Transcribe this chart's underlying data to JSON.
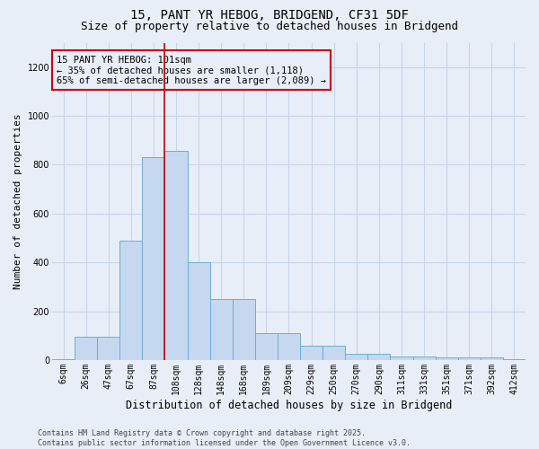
{
  "title_line1": "15, PANT YR HEBOG, BRIDGEND, CF31 5DF",
  "title_line2": "Size of property relative to detached houses in Bridgend",
  "xlabel": "Distribution of detached houses by size in Bridgend",
  "ylabel": "Number of detached properties",
  "bins": [
    "6sqm",
    "26sqm",
    "47sqm",
    "67sqm",
    "87sqm",
    "108sqm",
    "128sqm",
    "148sqm",
    "168sqm",
    "189sqm",
    "209sqm",
    "229sqm",
    "250sqm",
    "270sqm",
    "290sqm",
    "311sqm",
    "331sqm",
    "351sqm",
    "371sqm",
    "392sqm",
    "412sqm"
  ],
  "values": [
    5,
    95,
    95,
    490,
    830,
    855,
    400,
    250,
    250,
    110,
    110,
    60,
    60,
    25,
    25,
    15,
    15,
    10,
    10,
    10,
    5
  ],
  "bar_color": "#c5d8f0",
  "bar_edge_color": "#6baed6",
  "vline_color": "#cc0000",
  "vline_x": 4.5,
  "annotation_text": "15 PANT YR HEBOG: 101sqm\n← 35% of detached houses are smaller (1,118)\n65% of semi-detached houses are larger (2,089) →",
  "annotation_box_edgecolor": "#cc0000",
  "ylim": [
    0,
    1300
  ],
  "yticks": [
    0,
    200,
    400,
    600,
    800,
    1000,
    1200
  ],
  "grid_color": "#c8d4e8",
  "background_color": "#e8eef8",
  "footer_text": "Contains HM Land Registry data © Crown copyright and database right 2025.\nContains public sector information licensed under the Open Government Licence v3.0.",
  "title_fontsize": 10,
  "subtitle_fontsize": 9,
  "xlabel_fontsize": 8.5,
  "ylabel_fontsize": 8,
  "tick_fontsize": 7,
  "annotation_fontsize": 7.5,
  "footer_fontsize": 6
}
